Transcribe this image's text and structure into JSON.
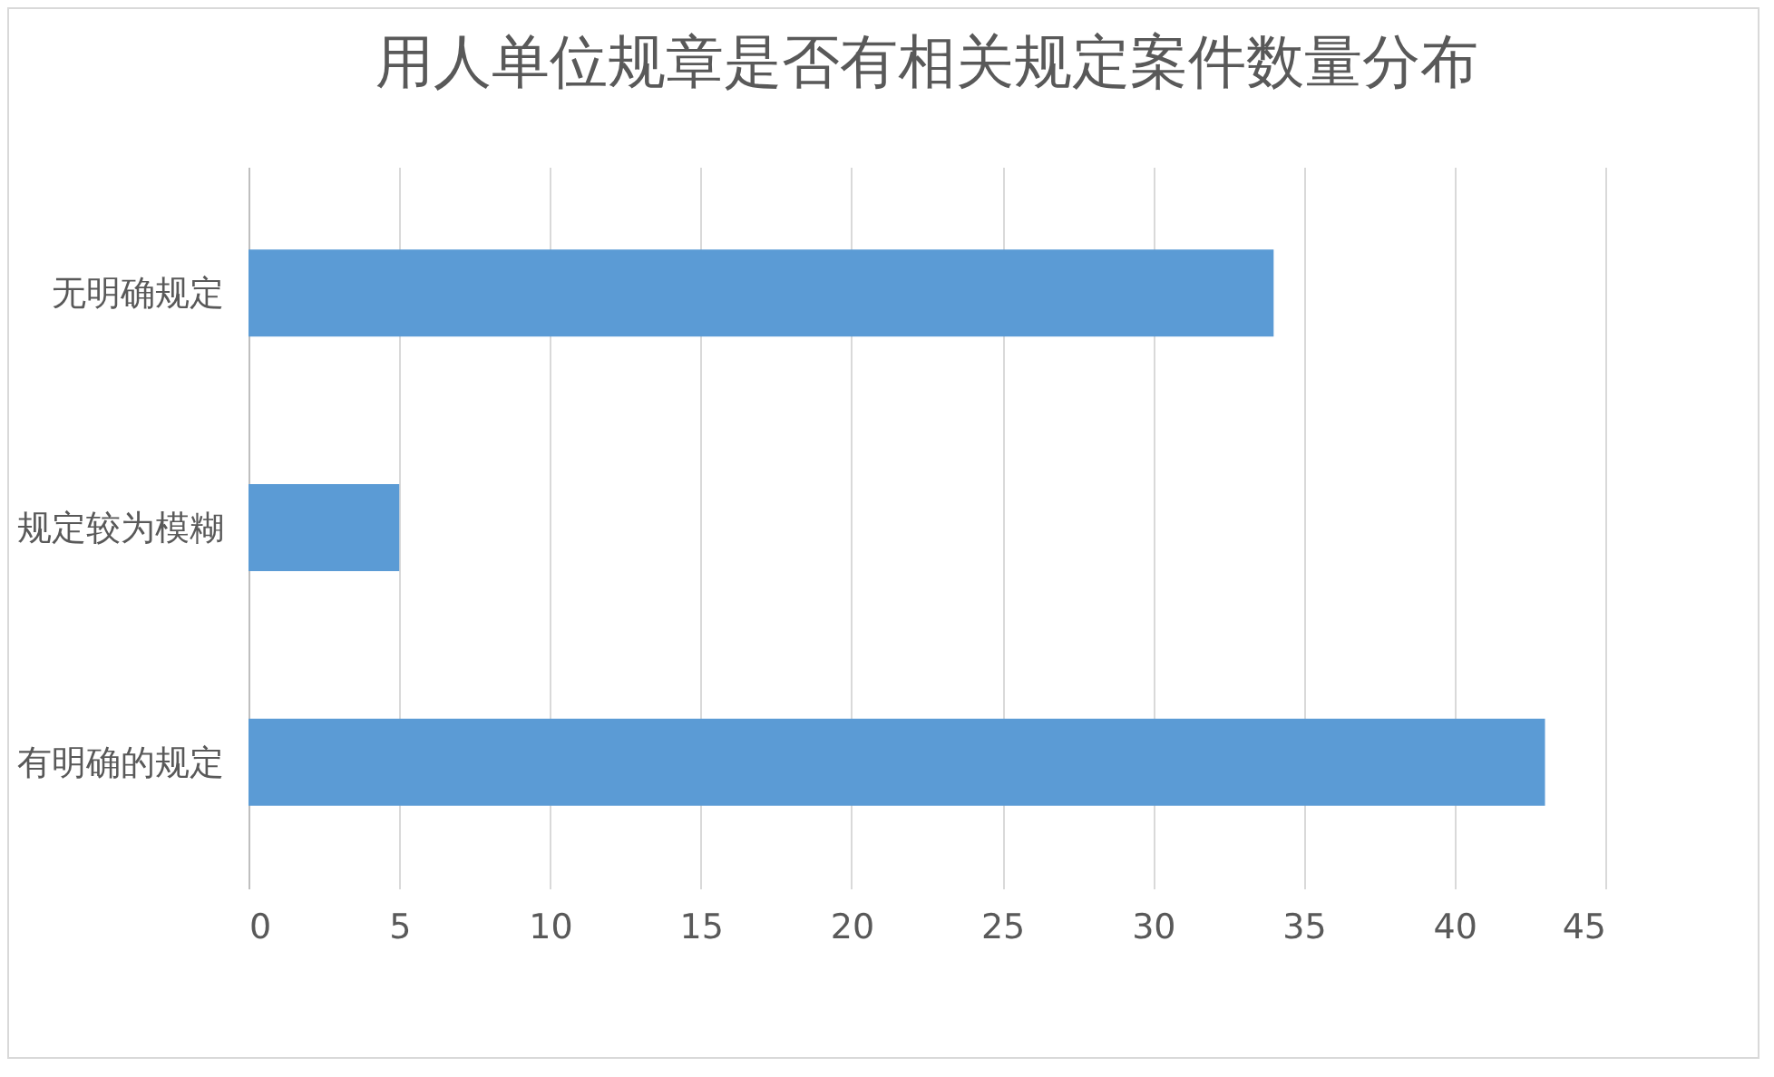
{
  "chart_data": {
    "type": "bar",
    "orientation": "horizontal",
    "title": "用人单位规章是否有相关规定案件数量分布",
    "categories": [
      "无明确规定",
      "规定较为模糊",
      "有明确的规定"
    ],
    "values": [
      34,
      5,
      43
    ],
    "color": "#5b9bd5",
    "xlim": [
      0,
      45
    ],
    "xticks": [
      0,
      5,
      10,
      15,
      20,
      25,
      30,
      35,
      40,
      45
    ],
    "grid": "x"
  }
}
